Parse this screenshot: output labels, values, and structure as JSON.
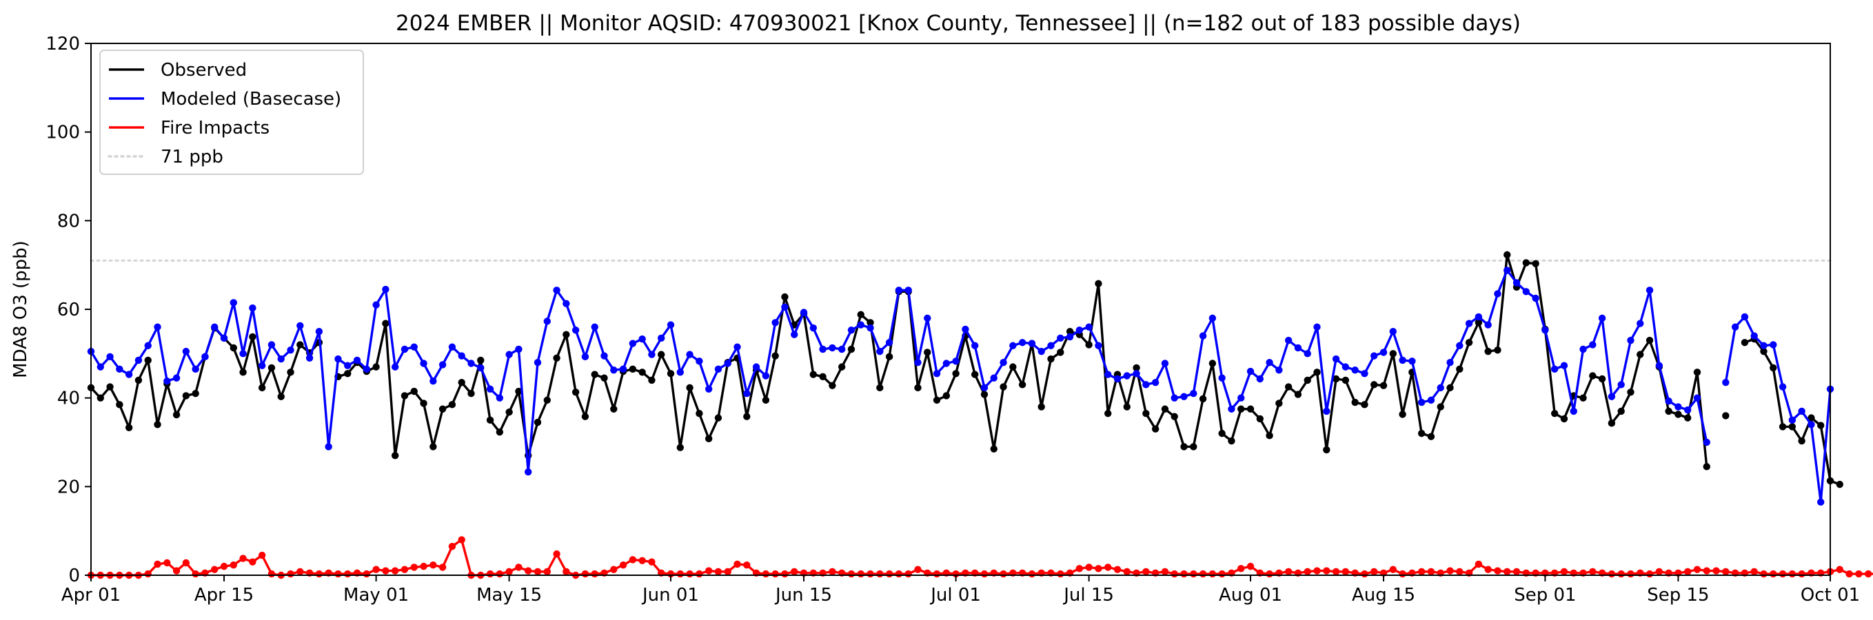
{
  "chart_data": {
    "type": "line",
    "title": "2024 EMBER || Monitor AQSID: 470930021 [Knox County, Tennessee] || (n=182 out of 183 possible days)",
    "xlabel": "",
    "ylabel": "MDA8 O3 (ppb)",
    "ylim": [
      0,
      120
    ],
    "yticks": [
      0,
      20,
      40,
      60,
      80,
      100,
      120
    ],
    "x_start": "2024-04-01",
    "x_end": "2024-10-01",
    "xticks": [
      {
        "date": "2024-04-01",
        "label": "Apr 01"
      },
      {
        "date": "2024-04-15",
        "label": "Apr 15"
      },
      {
        "date": "2024-05-01",
        "label": "May 01"
      },
      {
        "date": "2024-05-15",
        "label": "May 15"
      },
      {
        "date": "2024-06-01",
        "label": "Jun 01"
      },
      {
        "date": "2024-06-15",
        "label": "Jun 15"
      },
      {
        "date": "2024-07-01",
        "label": "Jul 01"
      },
      {
        "date": "2024-07-15",
        "label": "Jul 15"
      },
      {
        "date": "2024-08-01",
        "label": "Aug 01"
      },
      {
        "date": "2024-08-15",
        "label": "Aug 15"
      },
      {
        "date": "2024-09-01",
        "label": "Sep 01"
      },
      {
        "date": "2024-09-15",
        "label": "Sep 15"
      },
      {
        "date": "2024-10-01",
        "label": "Oct 01"
      }
    ],
    "grid": false,
    "legend_position": "top-left",
    "reference_line": {
      "label": "71 ppb",
      "value": 71,
      "color": "#d3d3d3",
      "style": "dotted"
    },
    "series": [
      {
        "name": "Observed",
        "color": "#000000",
        "start_date": "2024-04-01",
        "values": [
          42.3,
          40.0,
          42.5,
          38.5,
          33.3,
          44.0,
          48.5,
          34.0,
          43.2,
          36.2,
          40.5,
          41.0,
          49.3,
          55.8,
          53.5,
          51.3,
          45.8,
          53.8,
          42.3,
          46.8,
          40.3,
          45.8,
          52.0,
          50.2,
          52.5,
          null,
          44.8,
          45.5,
          48.0,
          46.0,
          47.0,
          56.8,
          27.0,
          40.5,
          41.5,
          38.8,
          29.0,
          37.5,
          38.5,
          43.5,
          41.0,
          48.5,
          35.0,
          32.3,
          36.8,
          41.5,
          27.0,
          34.5,
          39.5,
          49.0,
          54.3,
          41.3,
          35.8,
          45.3,
          44.5,
          37.5,
          46.0,
          46.5,
          45.8,
          44.0,
          49.8,
          45.5,
          28.8,
          42.3,
          36.5,
          30.8,
          35.5,
          48.0,
          49.0,
          35.8,
          46.3,
          39.5,
          49.5,
          62.8,
          56.5,
          59.0,
          45.3,
          44.8,
          42.8,
          47.0,
          51.0,
          58.8,
          57.0,
          42.3,
          49.3,
          64.0,
          64.0,
          42.3,
          50.3,
          39.5,
          40.5,
          45.5,
          54.0,
          45.3,
          40.8,
          28.5,
          42.5,
          47.0,
          43.0,
          52.3,
          38.0,
          48.8,
          50.3,
          55.0,
          54.3,
          52.0,
          65.8,
          36.5,
          45.3,
          38.0,
          46.8,
          36.5,
          33.0,
          37.5,
          35.8,
          29.0,
          29.0,
          39.8,
          47.8,
          32.0,
          30.3,
          37.5,
          37.5,
          35.3,
          31.5,
          38.8,
          42.5,
          40.8,
          44.0,
          45.8,
          28.3,
          44.3,
          44.0,
          39.0,
          38.5,
          43.0,
          42.8,
          50.0,
          36.3,
          45.8,
          32.0,
          31.3,
          38.0,
          42.3,
          46.5,
          52.5,
          57.0,
          50.5,
          50.8,
          72.3,
          65.0,
          70.5,
          70.3,
          55.5,
          36.5,
          35.3,
          40.5,
          40.0,
          45.0,
          44.3,
          34.3,
          37.0,
          41.3,
          49.8,
          53.0,
          47.0,
          37.0,
          36.3,
          35.5,
          45.8,
          24.5,
          null,
          36.0,
          null,
          52.5,
          53.3,
          50.5,
          46.8,
          33.5,
          33.5,
          30.3,
          35.5,
          33.8,
          21.3,
          20.5
        ]
      },
      {
        "name": "Modeled (Basecase)",
        "color": "#0000ff",
        "start_date": "2024-04-01",
        "values": [
          50.5,
          47.0,
          49.3,
          46.5,
          45.3,
          48.5,
          51.8,
          56.0,
          43.8,
          44.5,
          50.5,
          46.5,
          49.3,
          56.0,
          53.5,
          61.5,
          50.0,
          60.3,
          47.3,
          52.0,
          48.8,
          50.8,
          56.3,
          49.0,
          55.0,
          29.0,
          48.8,
          47.3,
          48.5,
          46.5,
          61.0,
          64.5,
          47.0,
          51.0,
          51.5,
          47.8,
          43.8,
          47.5,
          51.5,
          49.5,
          47.8,
          46.8,
          42.0,
          40.0,
          49.8,
          51.0,
          23.3,
          48.0,
          57.3,
          64.3,
          61.3,
          55.3,
          49.3,
          56.0,
          49.5,
          46.3,
          46.5,
          52.3,
          53.3,
          49.8,
          53.5,
          56.5,
          45.8,
          49.8,
          48.3,
          42.0,
          46.5,
          47.8,
          51.5,
          41.0,
          47.0,
          45.0,
          57.0,
          60.5,
          54.3,
          59.3,
          55.8,
          51.0,
          51.3,
          51.0,
          55.3,
          56.5,
          55.8,
          50.5,
          52.5,
          64.3,
          64.3,
          48.0,
          58.0,
          45.5,
          47.8,
          48.3,
          55.5,
          51.8,
          42.3,
          44.5,
          48.0,
          51.8,
          52.5,
          52.3,
          50.5,
          51.8,
          53.5,
          53.8,
          55.3,
          56.0,
          51.8,
          45.3,
          44.3,
          45.0,
          45.5,
          43.0,
          43.5,
          47.8,
          40.0,
          40.3,
          41.0,
          54.0,
          58.0,
          44.5,
          37.5,
          40.0,
          46.0,
          44.3,
          48.0,
          46.3,
          53.0,
          51.3,
          50.0,
          56.0,
          37.0,
          48.8,
          47.0,
          46.3,
          45.5,
          49.5,
          50.3,
          55.0,
          48.5,
          48.3,
          39.0,
          39.5,
          42.3,
          48.0,
          51.8,
          56.8,
          58.3,
          56.5,
          63.5,
          68.8,
          66.0,
          64.0,
          62.5,
          55.3,
          46.5,
          47.3,
          37.0,
          51.0,
          52.0,
          58.0,
          40.3,
          43.0,
          53.0,
          56.8,
          64.3,
          47.3,
          39.3,
          38.0,
          37.3,
          40.0,
          30.0,
          null,
          43.5,
          56.0,
          58.3,
          54.0,
          51.8,
          52.0,
          42.5,
          35.0,
          37.0,
          34.0,
          16.5,
          42.0
        ]
      },
      {
        "name": "Fire Impacts",
        "color": "#ff0000",
        "start_date": "2024-04-01",
        "values": [
          0.0,
          0.0,
          0.0,
          0.0,
          0.0,
          0.0,
          0.3,
          2.5,
          2.8,
          1.0,
          2.8,
          0.3,
          0.5,
          1.3,
          2.0,
          2.3,
          3.8,
          3.0,
          4.5,
          0.3,
          0.0,
          0.3,
          0.8,
          0.5,
          0.3,
          0.5,
          0.3,
          0.3,
          0.5,
          0.3,
          1.3,
          1.0,
          1.0,
          1.3,
          1.8,
          2.0,
          2.3,
          1.8,
          6.5,
          8.0,
          0.0,
          0.0,
          0.3,
          0.3,
          0.8,
          1.8,
          1.0,
          0.8,
          0.8,
          4.8,
          0.8,
          0.0,
          0.3,
          0.3,
          0.5,
          1.3,
          2.3,
          3.5,
          3.3,
          3.0,
          0.5,
          0.3,
          0.3,
          0.3,
          0.3,
          1.0,
          0.8,
          0.8,
          2.5,
          2.3,
          0.5,
          0.3,
          0.3,
          0.3,
          0.8,
          0.5,
          0.5,
          0.5,
          0.8,
          0.5,
          0.3,
          0.3,
          0.3,
          0.3,
          0.3,
          0.3,
          0.3,
          1.3,
          0.5,
          0.3,
          0.5,
          0.3,
          0.5,
          0.5,
          0.3,
          0.5,
          0.3,
          0.5,
          0.5,
          0.3,
          0.5,
          0.5,
          0.3,
          0.5,
          1.5,
          1.8,
          1.5,
          1.8,
          1.3,
          0.8,
          0.5,
          0.8,
          0.5,
          0.8,
          0.3,
          0.3,
          0.3,
          0.3,
          0.3,
          0.3,
          0.5,
          1.5,
          2.0,
          0.5,
          0.3,
          0.5,
          0.8,
          0.5,
          0.8,
          1.0,
          1.0,
          0.8,
          0.8,
          0.5,
          0.3,
          0.8,
          0.5,
          1.3,
          0.3,
          0.5,
          0.8,
          0.8,
          0.5,
          1.0,
          0.8,
          0.5,
          2.5,
          1.3,
          1.0,
          0.8,
          0.8,
          0.5,
          0.5,
          0.5,
          0.5,
          0.8,
          0.5,
          0.5,
          0.8,
          0.5,
          0.3,
          0.3,
          0.3,
          0.5,
          0.3,
          0.8,
          0.5,
          0.5,
          0.8,
          1.3,
          1.0,
          1.0,
          0.8,
          0.5,
          0.5,
          0.8,
          0.3,
          0.3,
          0.3,
          0.3,
          0.3,
          0.5,
          0.5,
          0.8,
          1.3,
          0.3,
          0.3,
          0.3,
          0.3
        ]
      }
    ]
  }
}
